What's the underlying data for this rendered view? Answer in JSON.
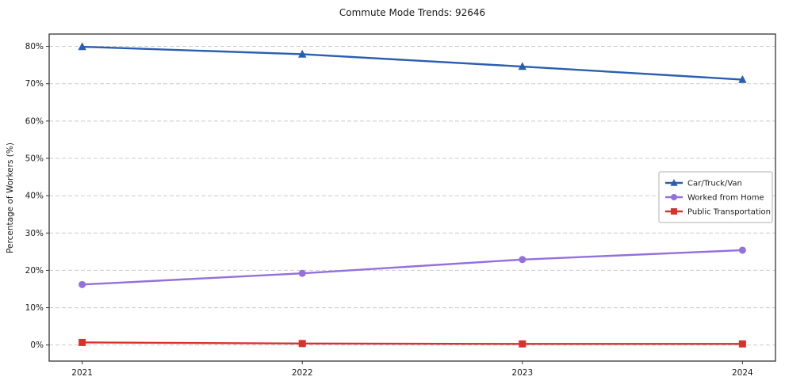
{
  "chart_data": {
    "type": "line",
    "title": "Commute Mode Trends: 92646",
    "xlabel": "",
    "ylabel": "Percentage of Workers (%)",
    "x": [
      2021,
      2022,
      2023,
      2024
    ],
    "x_tick_labels": [
      "2021",
      "2022",
      "2023",
      "2024"
    ],
    "y_ticks": [
      0,
      10,
      20,
      30,
      40,
      50,
      60,
      70,
      80
    ],
    "y_tick_labels": [
      "0%",
      "10%",
      "20%",
      "30%",
      "40%",
      "50%",
      "60%",
      "70%",
      "80%"
    ],
    "xlim": [
      2020.85,
      2024.15
    ],
    "ylim": [
      -4.3,
      83.3
    ],
    "grid": true,
    "grid_style": "dashed",
    "legend_position": "center right",
    "series": [
      {
        "name": "Car/Truck/Van",
        "color": "#2a5fae",
        "marker": "triangle",
        "values": [
          79.9,
          77.9,
          74.6,
          71.1
        ]
      },
      {
        "name": "Worked from Home",
        "color": "#9370db",
        "marker": "circle",
        "values": [
          16.2,
          19.2,
          22.9,
          25.4
        ]
      },
      {
        "name": "Public Transportation",
        "color": "#d6332e",
        "marker": "square",
        "values": [
          0.7,
          0.4,
          0.3,
          0.3
        ]
      }
    ]
  }
}
